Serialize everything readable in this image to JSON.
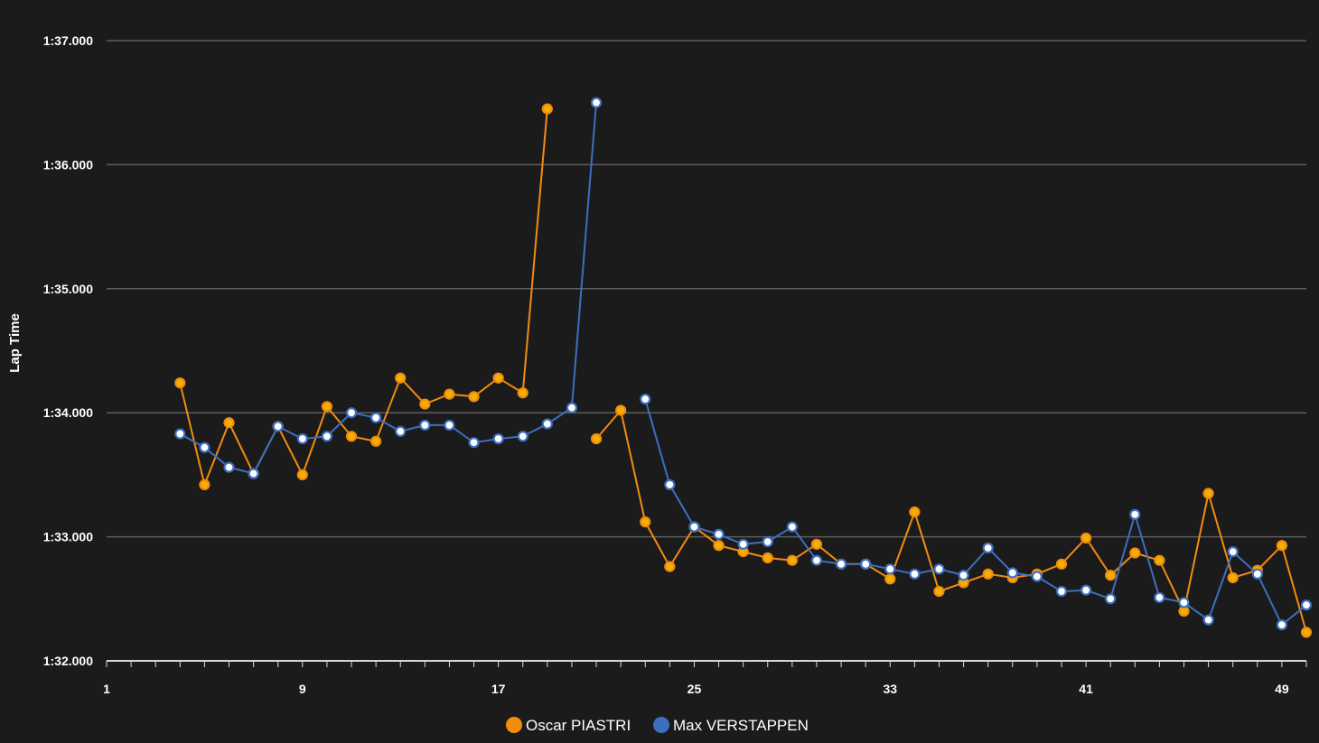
{
  "chart_data": {
    "type": "line",
    "title": "",
    "xlabel": "",
    "ylabel": "Lap Time",
    "xlim": [
      1,
      50
    ],
    "ylim": [
      92.0,
      97.0
    ],
    "y_ticks": [
      {
        "value": 92.0,
        "label": "1:32.000"
      },
      {
        "value": 93.0,
        "label": "1:33.000"
      },
      {
        "value": 94.0,
        "label": "1:34.000"
      },
      {
        "value": 95.0,
        "label": "1:35.000"
      },
      {
        "value": 96.0,
        "label": "1:36.000"
      },
      {
        "value": 97.0,
        "label": "1:37.000"
      }
    ],
    "x_ticks": [
      1,
      9,
      17,
      25,
      33,
      41,
      49
    ],
    "grid": true,
    "legend": "bottom-center",
    "series": [
      {
        "name": "Oscar PIASTRI",
        "color": "#f28c0f",
        "points": [
          [
            4,
            94.24
          ],
          [
            5,
            93.42
          ],
          [
            6,
            93.92
          ],
          [
            7,
            93.51
          ],
          [
            8,
            93.89
          ],
          [
            9,
            93.5
          ],
          [
            10,
            94.05
          ],
          [
            11,
            93.81
          ],
          [
            12,
            93.77
          ],
          [
            13,
            94.28
          ],
          [
            14,
            94.07
          ],
          [
            15,
            94.15
          ],
          [
            16,
            94.13
          ],
          [
            17,
            94.28
          ],
          [
            18,
            94.16
          ],
          [
            19,
            96.45
          ],
          [
            21,
            93.79
          ],
          [
            22,
            94.02
          ],
          [
            23,
            93.12
          ],
          [
            24,
            92.76
          ],
          [
            25,
            93.08
          ],
          [
            26,
            92.93
          ],
          [
            27,
            92.88
          ],
          [
            28,
            92.83
          ],
          [
            29,
            92.81
          ],
          [
            30,
            92.94
          ],
          [
            31,
            92.78
          ],
          [
            32,
            92.78
          ],
          [
            33,
            92.66
          ],
          [
            34,
            93.2
          ],
          [
            35,
            92.56
          ],
          [
            36,
            92.63
          ],
          [
            37,
            92.7
          ],
          [
            38,
            92.67
          ],
          [
            39,
            92.7
          ],
          [
            40,
            92.78
          ],
          [
            41,
            92.99
          ],
          [
            42,
            92.69
          ],
          [
            43,
            92.87
          ],
          [
            44,
            92.81
          ],
          [
            45,
            92.4
          ],
          [
            46,
            93.35
          ],
          [
            47,
            92.67
          ],
          [
            48,
            92.73
          ],
          [
            49,
            92.93
          ],
          [
            50,
            92.23
          ]
        ]
      },
      {
        "name": "Max VERSTAPPEN",
        "color": "#3d6fc0",
        "points": [
          [
            4,
            93.83
          ],
          [
            5,
            93.72
          ],
          [
            6,
            93.56
          ],
          [
            7,
            93.51
          ],
          [
            8,
            93.89
          ],
          [
            9,
            93.79
          ],
          [
            10,
            93.81
          ],
          [
            11,
            94.0
          ],
          [
            12,
            93.96
          ],
          [
            13,
            93.85
          ],
          [
            14,
            93.9
          ],
          [
            15,
            93.9
          ],
          [
            16,
            93.76
          ],
          [
            17,
            93.79
          ],
          [
            18,
            93.81
          ],
          [
            19,
            93.91
          ],
          [
            20,
            94.04
          ],
          [
            21,
            96.5
          ],
          [
            23,
            94.11
          ],
          [
            24,
            93.42
          ],
          [
            25,
            93.08
          ],
          [
            26,
            93.02
          ],
          [
            27,
            92.94
          ],
          [
            28,
            92.96
          ],
          [
            29,
            93.08
          ],
          [
            30,
            92.81
          ],
          [
            31,
            92.78
          ],
          [
            32,
            92.78
          ],
          [
            33,
            92.74
          ],
          [
            34,
            92.7
          ],
          [
            35,
            92.74
          ],
          [
            36,
            92.69
          ],
          [
            37,
            92.91
          ],
          [
            38,
            92.71
          ],
          [
            39,
            92.68
          ],
          [
            40,
            92.56
          ],
          [
            41,
            92.57
          ],
          [
            42,
            92.5
          ],
          [
            43,
            93.18
          ],
          [
            44,
            92.51
          ],
          [
            45,
            92.47
          ],
          [
            46,
            92.33
          ],
          [
            47,
            92.88
          ],
          [
            48,
            92.7
          ],
          [
            49,
            92.29
          ],
          [
            50,
            92.45
          ]
        ]
      }
    ]
  }
}
